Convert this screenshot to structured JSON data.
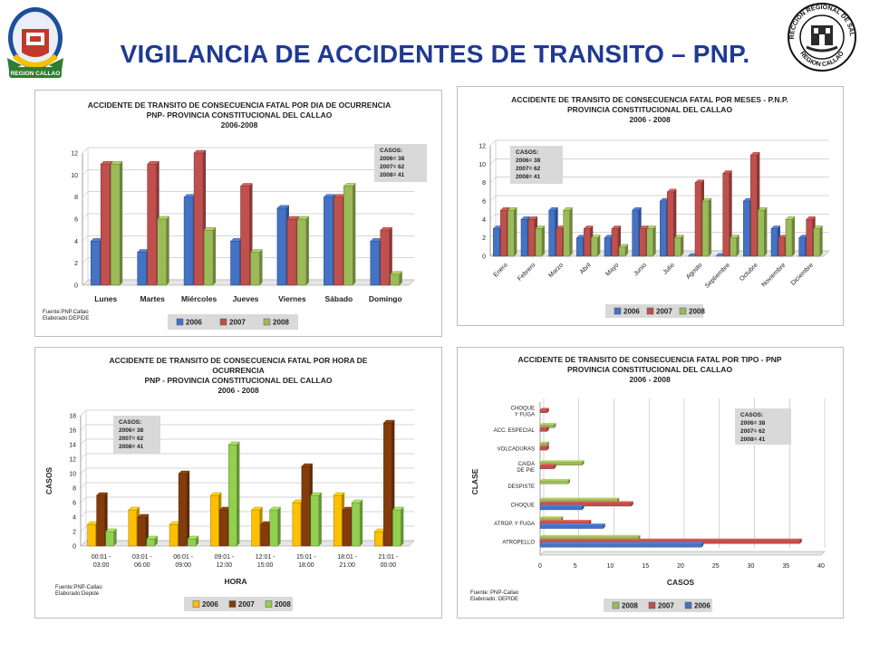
{
  "slide": {
    "title": "VIGILANCIA DE ACCIDENTES DE TRANSITO – PNP.",
    "logo_left_text": "REGION CALLAO",
    "logo_right_text_top": "DIRECCION REGIONAL DE SALUD",
    "logo_right_text_bottom": "REGION CALLAO"
  },
  "colors": {
    "2006": "#4472c4",
    "2007": "#c0504d",
    "2008": "#9bbb59",
    "h2006": "#ffc000",
    "h2007": "#843c0c",
    "h2008": "#92d050"
  },
  "chart_data": [
    {
      "type": "bar",
      "title_lines": [
        "ACCIDENTE DE TRANSITO DE CONSECUENCIA FATAL POR DIA DE OCURRENCIA",
        "PNP- PROVINCIA CONSTITUCIONAL DEL CALLAO",
        "2006-2008"
      ],
      "categories": [
        "Lunes",
        "Martes",
        "Miércoles",
        "Jueves",
        "Viernes",
        "Sábado",
        "Domingo"
      ],
      "series": [
        {
          "name": "2006",
          "values": [
            4,
            3,
            8,
            4,
            7,
            8,
            4
          ]
        },
        {
          "name": "2007",
          "values": [
            11,
            11,
            12,
            9,
            6,
            8,
            5
          ]
        },
        {
          "name": "2008",
          "values": [
            11,
            6,
            5,
            3,
            6,
            9,
            1
          ]
        }
      ],
      "yticks": [
        "0",
        "2",
        "4",
        "6",
        "8",
        "10",
        "12"
      ],
      "ylim": [
        0,
        12
      ],
      "casos": [
        "CASOS:",
        "2006= 38",
        "2007= 62",
        "2008= 41"
      ],
      "notes": [
        "Fuente:PNP.Callao",
        "Elaborado:DEPIDE"
      ],
      "legend": [
        "2006",
        "2007",
        "2008"
      ]
    },
    {
      "type": "bar",
      "title_lines": [
        "ACCIDENTE DE TRANSITO DE CONSECUENCIA FATAL POR MESES - P.N.P.",
        "PROVINCIA CONSTITUCIONAL DEL CALLAO",
        "2006 - 2008"
      ],
      "categories": [
        "Enero",
        "Febrero",
        "Marzo",
        "Abril",
        "Mayo",
        "Junio",
        "Julio",
        "Agosto",
        "Septiembre",
        "Octubre",
        "Noviembre",
        "Diciembre"
      ],
      "series": [
        {
          "name": "2006",
          "values": [
            3,
            4,
            5,
            2,
            2,
            5,
            6,
            0,
            0,
            6,
            3,
            2
          ]
        },
        {
          "name": "2007",
          "values": [
            5,
            4,
            3,
            3,
            3,
            3,
            7,
            8,
            9,
            11,
            2,
            4
          ]
        },
        {
          "name": "2008",
          "values": [
            5,
            3,
            5,
            2,
            1,
            3,
            2,
            6,
            2,
            5,
            4,
            3
          ]
        }
      ],
      "yticks": [
        "0",
        "2",
        "4",
        "6",
        "8",
        "10",
        "12"
      ],
      "ylim": [
        0,
        12
      ],
      "casos": [
        "CASOS:",
        "2006= 38",
        "2007= 62",
        "2008= 41"
      ],
      "legend": [
        "2006",
        "2007",
        "2008"
      ]
    },
    {
      "type": "bar",
      "title_lines": [
        "ACCIDENTE DE TRANSITO DE CONSECUENCIA FATAL POR HORA DE",
        "OCURRENCIA",
        "PNP - PROVINCIA CONSTITUCIONAL DEL CALLAO",
        "2006 - 2008"
      ],
      "categories": [
        "00:01 -\n03:00",
        "03:01 -\n06:00",
        "06:01 -\n09:00",
        "09:01 -\n12:00",
        "12:01 -\n15:00",
        "15:01 -\n18:00",
        "18:01 -\n21:00",
        "21:01 -\n00:00"
      ],
      "series": [
        {
          "name": "2006",
          "values": [
            3,
            5,
            3,
            7,
            5,
            6,
            7,
            2
          ]
        },
        {
          "name": "2007",
          "values": [
            7,
            4,
            10,
            5,
            3,
            11,
            5,
            17
          ]
        },
        {
          "name": "2008",
          "values": [
            2,
            1,
            1,
            14,
            5,
            7,
            6,
            5
          ]
        }
      ],
      "yticks": [
        "0",
        "2",
        "4",
        "6",
        "8",
        "10",
        "12",
        "14",
        "16",
        "18"
      ],
      "ylim": [
        0,
        18
      ],
      "ylabel": "CASOS",
      "xlabel": "HORA",
      "casos": [
        "CASOS:",
        "2006= 38",
        "2007= 62",
        "2008= 41"
      ],
      "notes": [
        "Fuente:PNP-Callao",
        "Elaborado:Depide"
      ],
      "legend": [
        "2006",
        "2007",
        "2008"
      ]
    },
    {
      "type": "bar",
      "orientation": "horizontal",
      "title_lines": [
        "ACCIDENTE DE  TRANSITO DE CONSECUENCIA FATAL POR TIPO - PNP",
        "PROVINCIA CONSTITUCIONAL DEL CALLAO",
        "2006 - 2008"
      ],
      "categories": [
        "ATROPELLO",
        "ATROP.  Y FUGA",
        "CHOQUE",
        "DESPISTE",
        "CAIDA\nDE PIE",
        "VOLCADURAS",
        "ACC. ESPECIAL",
        "CHOQUE\nY FUGA"
      ],
      "series": [
        {
          "name": "2006",
          "values": [
            23,
            9,
            6,
            0,
            0,
            0,
            0,
            0
          ]
        },
        {
          "name": "2007",
          "values": [
            37,
            7,
            13,
            0,
            2,
            1,
            1,
            1
          ]
        },
        {
          "name": "2008",
          "values": [
            14,
            3,
            11,
            4,
            6,
            1,
            2,
            0
          ]
        }
      ],
      "xticks": [
        "0",
        "5",
        "10",
        "15",
        "20",
        "25",
        "30",
        "35",
        "40"
      ],
      "xlim": [
        0,
        40
      ],
      "xlabel": "CASOS",
      "ylabel": "CLASE",
      "casos": [
        "CASOS:",
        "2006= 38",
        "2007= 62",
        "2008= 41"
      ],
      "notes": [
        "Fuente: PNP-Callao",
        "Elaborado: DEPIDE"
      ],
      "legend": [
        "2008",
        "2007",
        "2006"
      ]
    }
  ]
}
